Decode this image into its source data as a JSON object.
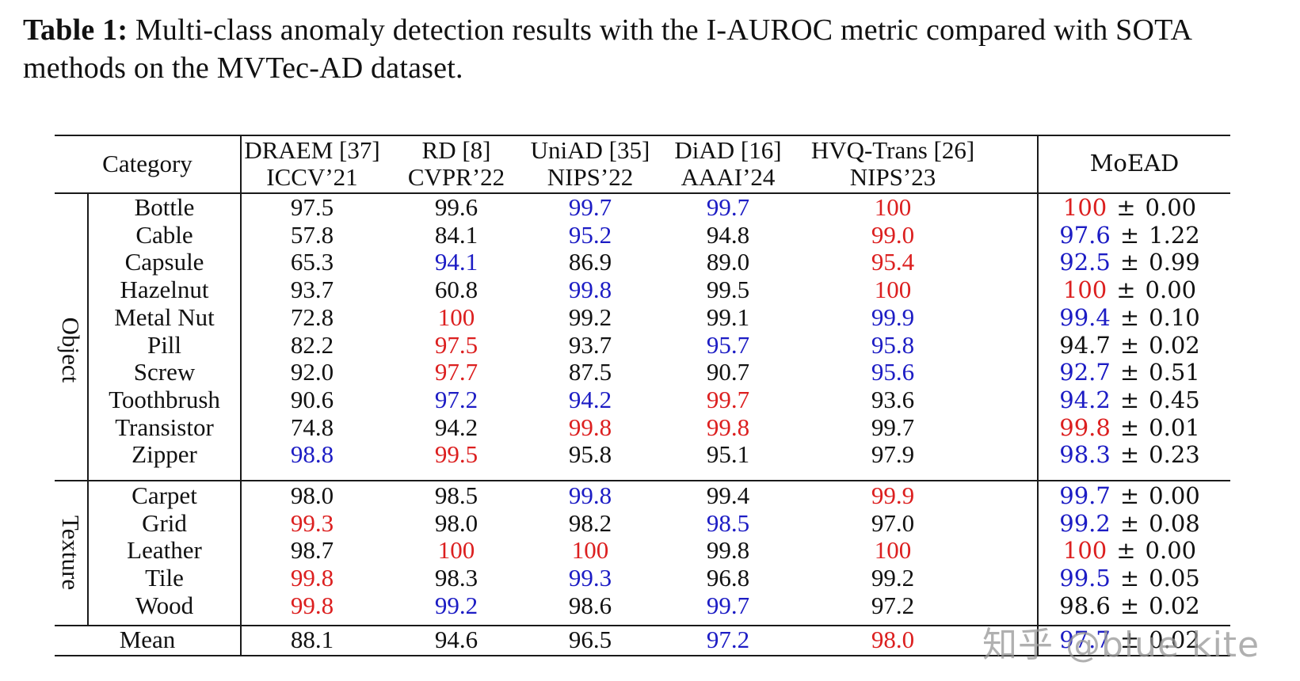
{
  "caption": {
    "label": "Table 1:",
    "text": " Multi-class anomaly detection results with the I-AUROC metric compared with SOTA methods on the MVTec-AD dataset."
  },
  "colors": {
    "best": "#dc1f1f",
    "second": "#1c1cc4",
    "normal": "#111111"
  },
  "header": {
    "category": "Category",
    "methods": [
      {
        "name": "DRAEM [37]",
        "venue": "ICCV’21"
      },
      {
        "name": "RD [8]",
        "venue": "CVPR’22"
      },
      {
        "name": "UniAD [35]",
        "venue": "NIPS’22"
      },
      {
        "name": "DiAD [16]",
        "venue": "AAAI’24"
      },
      {
        "name": "HVQ-Trans [26]",
        "venue": "NIPS’23"
      },
      {
        "name": "MoEAD",
        "venue": ""
      }
    ]
  },
  "groups": [
    {
      "label": "Object"
    },
    {
      "label": "Texture"
    }
  ],
  "rows": [
    {
      "group": "Object",
      "name": "Bottle",
      "values": [
        {
          "v": "97.5",
          "c": "black"
        },
        {
          "v": "99.6",
          "c": "black"
        },
        {
          "v": "99.7",
          "c": "blue"
        },
        {
          "v": "99.7",
          "c": "blue"
        },
        {
          "v": "100",
          "c": "red"
        }
      ],
      "moead": {
        "mean": "100",
        "std": "0.00",
        "c": "red"
      }
    },
    {
      "group": "Object",
      "name": "Cable",
      "values": [
        {
          "v": "57.8",
          "c": "black"
        },
        {
          "v": "84.1",
          "c": "black"
        },
        {
          "v": "95.2",
          "c": "blue"
        },
        {
          "v": "94.8",
          "c": "black"
        },
        {
          "v": "99.0",
          "c": "red"
        }
      ],
      "moead": {
        "mean": "97.6",
        "std": "1.22",
        "c": "blue"
      }
    },
    {
      "group": "Object",
      "name": "Capsule",
      "values": [
        {
          "v": "65.3",
          "c": "black"
        },
        {
          "v": "94.1",
          "c": "blue"
        },
        {
          "v": "86.9",
          "c": "black"
        },
        {
          "v": "89.0",
          "c": "black"
        },
        {
          "v": "95.4",
          "c": "red"
        }
      ],
      "moead": {
        "mean": "92.5",
        "std": "0.99",
        "c": "blue"
      }
    },
    {
      "group": "Object",
      "name": "Hazelnut",
      "values": [
        {
          "v": "93.7",
          "c": "black"
        },
        {
          "v": "60.8",
          "c": "black"
        },
        {
          "v": "99.8",
          "c": "blue"
        },
        {
          "v": "99.5",
          "c": "black"
        },
        {
          "v": "100",
          "c": "red"
        }
      ],
      "moead": {
        "mean": "100",
        "std": "0.00",
        "c": "red"
      }
    },
    {
      "group": "Object",
      "name": "Metal Nut",
      "values": [
        {
          "v": "72.8",
          "c": "black"
        },
        {
          "v": "100",
          "c": "red"
        },
        {
          "v": "99.2",
          "c": "black"
        },
        {
          "v": "99.1",
          "c": "black"
        },
        {
          "v": "99.9",
          "c": "blue"
        }
      ],
      "moead": {
        "mean": "99.4",
        "std": "0.10",
        "c": "blue"
      }
    },
    {
      "group": "Object",
      "name": "Pill",
      "values": [
        {
          "v": "82.2",
          "c": "black"
        },
        {
          "v": "97.5",
          "c": "red"
        },
        {
          "v": "93.7",
          "c": "black"
        },
        {
          "v": "95.7",
          "c": "blue"
        },
        {
          "v": "95.8",
          "c": "blue"
        }
      ],
      "moead": {
        "mean": "94.7",
        "std": "0.02",
        "c": "black"
      }
    },
    {
      "group": "Object",
      "name": "Screw",
      "values": [
        {
          "v": "92.0",
          "c": "black"
        },
        {
          "v": "97.7",
          "c": "red"
        },
        {
          "v": "87.5",
          "c": "black"
        },
        {
          "v": "90.7",
          "c": "black"
        },
        {
          "v": "95.6",
          "c": "blue"
        }
      ],
      "moead": {
        "mean": "92.7",
        "std": "0.51",
        "c": "blue"
      }
    },
    {
      "group": "Object",
      "name": "Toothbrush",
      "values": [
        {
          "v": "90.6",
          "c": "black"
        },
        {
          "v": "97.2",
          "c": "blue"
        },
        {
          "v": "94.2",
          "c": "blue"
        },
        {
          "v": "99.7",
          "c": "red"
        },
        {
          "v": "93.6",
          "c": "black"
        }
      ],
      "moead": {
        "mean": "94.2",
        "std": "0.45",
        "c": "blue"
      }
    },
    {
      "group": "Object",
      "name": "Transistor",
      "values": [
        {
          "v": "74.8",
          "c": "black"
        },
        {
          "v": "94.2",
          "c": "black"
        },
        {
          "v": "99.8",
          "c": "red"
        },
        {
          "v": "99.8",
          "c": "red"
        },
        {
          "v": "99.7",
          "c": "black"
        }
      ],
      "moead": {
        "mean": "99.8",
        "std": "0.01",
        "c": "red"
      }
    },
    {
      "group": "Object",
      "name": "Zipper",
      "values": [
        {
          "v": "98.8",
          "c": "blue"
        },
        {
          "v": "99.5",
          "c": "red"
        },
        {
          "v": "95.8",
          "c": "black"
        },
        {
          "v": "95.1",
          "c": "black"
        },
        {
          "v": "97.9",
          "c": "black"
        }
      ],
      "moead": {
        "mean": "98.3",
        "std": "0.23",
        "c": "blue"
      }
    },
    {
      "group": "Texture",
      "name": "Carpet",
      "values": [
        {
          "v": "98.0",
          "c": "black"
        },
        {
          "v": "98.5",
          "c": "black"
        },
        {
          "v": "99.8",
          "c": "blue"
        },
        {
          "v": "99.4",
          "c": "black"
        },
        {
          "v": "99.9",
          "c": "red"
        }
      ],
      "moead": {
        "mean": "99.7",
        "std": "0.00",
        "c": "blue"
      }
    },
    {
      "group": "Texture",
      "name": "Grid",
      "values": [
        {
          "v": "99.3",
          "c": "red"
        },
        {
          "v": "98.0",
          "c": "black"
        },
        {
          "v": "98.2",
          "c": "black"
        },
        {
          "v": "98.5",
          "c": "blue"
        },
        {
          "v": "97.0",
          "c": "black"
        }
      ],
      "moead": {
        "mean": "99.2",
        "std": "0.08",
        "c": "blue"
      }
    },
    {
      "group": "Texture",
      "name": "Leather",
      "values": [
        {
          "v": "98.7",
          "c": "black"
        },
        {
          "v": "100",
          "c": "red"
        },
        {
          "v": "100",
          "c": "red"
        },
        {
          "v": "99.8",
          "c": "black"
        },
        {
          "v": "100",
          "c": "red"
        }
      ],
      "moead": {
        "mean": "100",
        "std": "0.00",
        "c": "red"
      }
    },
    {
      "group": "Texture",
      "name": "Tile",
      "values": [
        {
          "v": "99.8",
          "c": "red"
        },
        {
          "v": "98.3",
          "c": "black"
        },
        {
          "v": "99.3",
          "c": "blue"
        },
        {
          "v": "96.8",
          "c": "black"
        },
        {
          "v": "99.2",
          "c": "black"
        }
      ],
      "moead": {
        "mean": "99.5",
        "std": "0.05",
        "c": "blue"
      }
    },
    {
      "group": "Texture",
      "name": "Wood",
      "values": [
        {
          "v": "99.8",
          "c": "red"
        },
        {
          "v": "99.2",
          "c": "blue"
        },
        {
          "v": "98.6",
          "c": "black"
        },
        {
          "v": "99.7",
          "c": "blue"
        },
        {
          "v": "97.2",
          "c": "black"
        }
      ],
      "moead": {
        "mean": "98.6",
        "std": "0.02",
        "c": "black"
      }
    }
  ],
  "mean_row": {
    "name": "Mean",
    "values": [
      {
        "v": "88.1",
        "c": "black"
      },
      {
        "v": "94.6",
        "c": "black"
      },
      {
        "v": "96.5",
        "c": "black"
      },
      {
        "v": "97.2",
        "c": "blue"
      },
      {
        "v": "98.0",
        "c": "red"
      }
    ],
    "moead": {
      "mean": "97.7",
      "std": "0.02",
      "c": "blue"
    }
  },
  "pm_symbol": "±",
  "watermark": "知乎 @blue kite"
}
